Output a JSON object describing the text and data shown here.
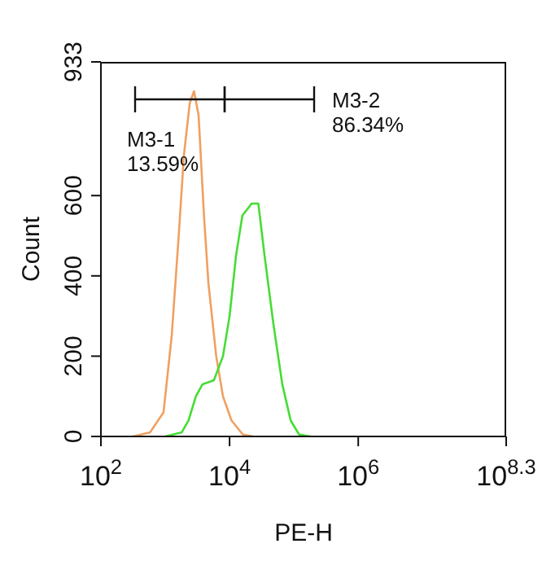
{
  "chart_data": {
    "type": "line",
    "xlabel": "PE-H",
    "ylabel": "Count",
    "log": "x",
    "xlim": [
      100,
      199526231
    ],
    "xticks": [
      {
        "value": 100,
        "label": "10$^{2}$"
      },
      {
        "value": 10000,
        "label": "10$^{4}$"
      },
      {
        "value": 1000000,
        "label": "10$^{6}$"
      },
      {
        "value": 199526231,
        "label": "10$^{8.3}$"
      }
    ],
    "ylim": [
      0,
      933
    ],
    "yticks": [
      0,
      200,
      400,
      600,
      933
    ],
    "marker": "none",
    "line_style": "solid",
    "annotations": [
      "M3-1\n13.59%",
      "M3-2\n86.34%"
    ],
    "series": [
      {
        "color": "#f0a060",
        "x": [
          316,
          580,
          940,
          1260,
          1620,
          1950,
          2400,
          2800,
          3300,
          4000,
          4700,
          6200,
          7900,
          10700,
          16000,
          23000
        ],
        "values": [
          0,
          10,
          60,
          250,
          500,
          700,
          830,
          860,
          800,
          550,
          380,
          200,
          100,
          40,
          5,
          0
        ]
      },
      {
        "color": "#44dd33",
        "x": [
          1000,
          1800,
          2300,
          3000,
          3800,
          5700,
          7900,
          10000,
          12600,
          15800,
          22000,
          28000,
          35000,
          48000,
          66000,
          89000,
          120000,
          180000
        ],
        "values": [
          0,
          10,
          40,
          100,
          130,
          140,
          200,
          300,
          450,
          550,
          580,
          580,
          450,
          280,
          130,
          40,
          5,
          0
        ]
      }
    ]
  }
}
